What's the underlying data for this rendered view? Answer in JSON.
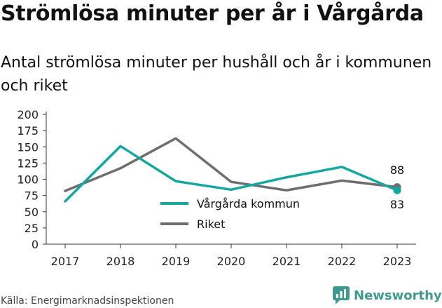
{
  "title": "Strömlösa minuter per år i Vårgårda",
  "subtitle": "Antal strömlösa minuter per hushåll och år i kommunen och riket",
  "source": "Källa: Energimarknadsinspektionen",
  "brand": "Newsworthy",
  "colors": {
    "series1": "#13a89e",
    "series2": "#6d6d72",
    "axis": "#333333",
    "grid": "#e0e0e0",
    "brand": "#3f9a8e"
  },
  "chart_data": {
    "type": "line",
    "x": [
      "2017",
      "2018",
      "2019",
      "2020",
      "2021",
      "2022",
      "2023"
    ],
    "ylim": [
      0,
      200
    ],
    "yticks": [
      0,
      25,
      50,
      75,
      100,
      125,
      150,
      175,
      200
    ],
    "legend_position": "bottom-center",
    "grid": false,
    "series": [
      {
        "name": "Vårgårda kommun",
        "values": [
          66,
          151,
          97,
          84,
          103,
          119,
          83
        ],
        "end_label": "83"
      },
      {
        "name": "Riket",
        "values": [
          82,
          117,
          163,
          96,
          83,
          98,
          88
        ],
        "end_label": "88"
      }
    ]
  }
}
